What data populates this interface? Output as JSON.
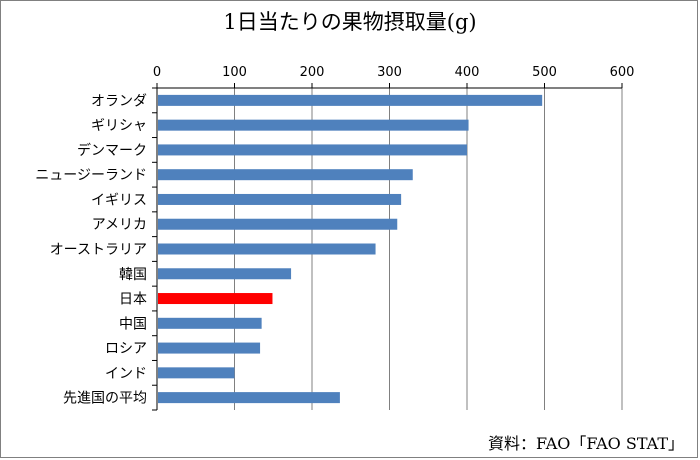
{
  "chart_data": {
    "type": "bar",
    "orientation": "horizontal",
    "title": "1日当たりの果物摂取量(g)",
    "categories": [
      "オランダ",
      "ギリシャ",
      "デンマーク",
      "ニュージーランド",
      "イギリス",
      "アメリカ",
      "オーストラリア",
      "韓国",
      "日本",
      "中国",
      "ロシア",
      "インド",
      "先進国の平均"
    ],
    "values": [
      497,
      402,
      400,
      330,
      315,
      310,
      282,
      173,
      149,
      135,
      133,
      100,
      236
    ],
    "xlim": [
      0,
      600
    ],
    "xticks": [
      "0",
      "100",
      "200",
      "300",
      "400",
      "500",
      "600"
    ],
    "x_axis_position": "top",
    "grid": true,
    "legend": "none",
    "bar_color": "#4F81BD",
    "highlight_color": "#FF0000",
    "highlight_category": "日本",
    "gridline_color": "#808080"
  },
  "source": "資料：FAO「FAO STAT」"
}
